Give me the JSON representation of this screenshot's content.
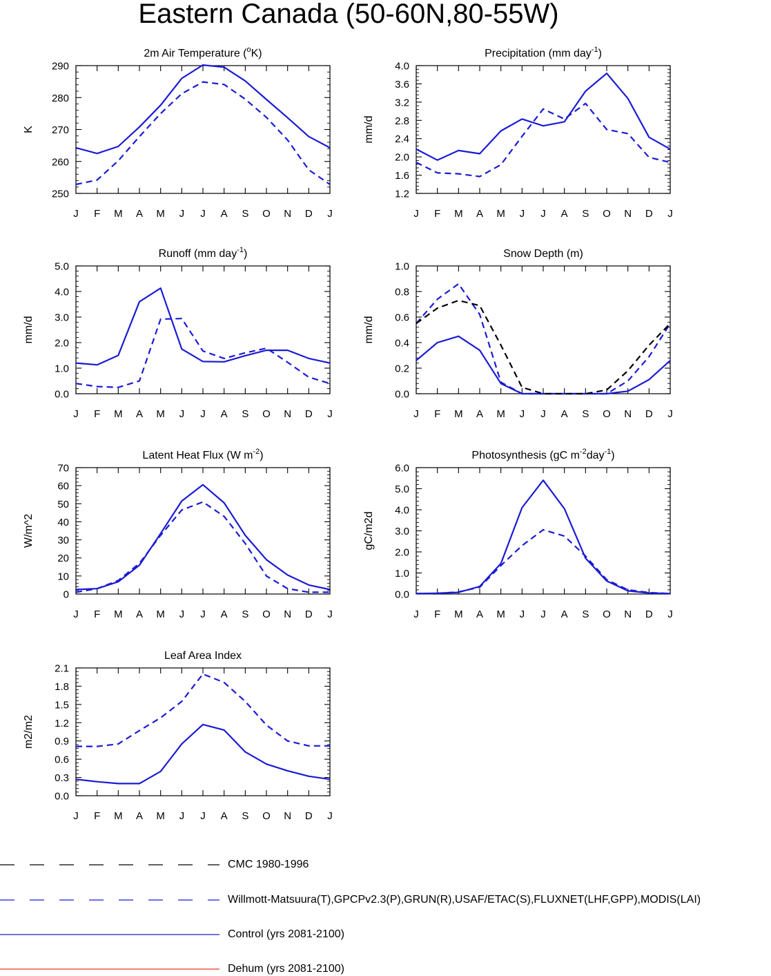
{
  "page": {
    "title": "Eastern Canada (50-60N,80-55W)"
  },
  "colors": {
    "model": "#1a1ad4",
    "obs": "#1a1ad4",
    "cmc": "#000000",
    "dehum": "#e03a1f",
    "axis": "#000000"
  },
  "legend": [
    {
      "label": "CMC 1980-1996",
      "style": "dashed",
      "color": "#000000"
    },
    {
      "label": "Willmott-Matsuura(T),GPCPv2.3(P),GRUN(R),USAF/ETAC(S),FLUXNET(LHF,GPP),MODIS(LAI)",
      "style": "dashed",
      "color": "#1a1ad4"
    },
    {
      "label": "Control (yrs 2081-2100)",
      "style": "solid",
      "color": "#1a1ad4"
    },
    {
      "label": "Dehum (yrs 2081-2100)",
      "style": "solid",
      "color": "#e03a1f"
    }
  ],
  "chart_data": [
    {
      "type": "line",
      "title": "2m Air Temperature (oK)",
      "title_parts": [
        "2m Air Temperature (",
        "o",
        "K)"
      ],
      "ylabel": "K",
      "categories": [
        "J",
        "F",
        "M",
        "A",
        "M",
        "J",
        "J",
        "A",
        "S",
        "O",
        "N",
        "D",
        "J"
      ],
      "ylim": [
        250,
        290
      ],
      "yticks": [
        "250",
        "260",
        "270",
        "280",
        "290"
      ],
      "series": [
        {
          "name": "Control (yrs 2081-2100)",
          "style": "solid",
          "values": [
            264.3,
            262.5,
            264.7,
            270.8,
            277.6,
            286.0,
            290.2,
            289.5,
            285.2,
            279.4,
            273.7,
            267.8,
            264.3
          ]
        },
        {
          "name": "Willmott-Matsuura(T)",
          "style": "dashed",
          "values": [
            252.8,
            254.2,
            260.2,
            267.8,
            275.0,
            281.2,
            284.9,
            284.1,
            279.5,
            273.8,
            266.7,
            257.4,
            252.8
          ]
        }
      ]
    },
    {
      "type": "line",
      "title": "Precipitation (mm day-1)",
      "title_parts": [
        "Precipitation (mm day",
        "-1",
        ")"
      ],
      "ylabel": "mm/d",
      "categories": [
        "J",
        "F",
        "M",
        "A",
        "M",
        "J",
        "J",
        "A",
        "S",
        "O",
        "N",
        "D",
        "J"
      ],
      "ylim": [
        1.2,
        4.0
      ],
      "yticks": [
        "1.2",
        "1.6",
        "2.0",
        "2.4",
        "2.8",
        "3.2",
        "3.6",
        "4.0"
      ],
      "series": [
        {
          "name": "Control (yrs 2081-2100)",
          "style": "solid",
          "values": [
            2.17,
            1.93,
            2.14,
            2.07,
            2.57,
            2.83,
            2.68,
            2.77,
            3.44,
            3.83,
            3.28,
            2.43,
            2.17
          ]
        },
        {
          "name": "GPCPv2.3(P)",
          "style": "dashed",
          "values": [
            1.88,
            1.65,
            1.63,
            1.57,
            1.83,
            2.45,
            3.05,
            2.83,
            3.17,
            2.6,
            2.51,
            1.99,
            1.88
          ]
        }
      ]
    },
    {
      "type": "line",
      "title": "Runoff (mm day-1)",
      "title_parts": [
        "Runoff (mm day",
        "-1",
        ")"
      ],
      "ylabel": "mm/d",
      "categories": [
        "J",
        "F",
        "M",
        "A",
        "M",
        "J",
        "J",
        "A",
        "S",
        "O",
        "N",
        "D",
        "J"
      ],
      "ylim": [
        0,
        5.0
      ],
      "yticks": [
        "0.0",
        "1.0",
        "2.0",
        "3.0",
        "4.0",
        "5.0"
      ],
      "series": [
        {
          "name": "Control (yrs 2081-2100)",
          "style": "solid",
          "values": [
            1.2,
            1.13,
            1.5,
            3.6,
            4.13,
            1.75,
            1.26,
            1.25,
            1.49,
            1.7,
            1.7,
            1.38,
            1.2
          ]
        },
        {
          "name": "GRUN(R)",
          "style": "dashed",
          "values": [
            0.4,
            0.28,
            0.25,
            0.5,
            2.92,
            2.94,
            1.67,
            1.38,
            1.6,
            1.78,
            1.23,
            0.65,
            0.4
          ]
        }
      ]
    },
    {
      "type": "line",
      "title": "Snow Depth (m)",
      "title_parts": [
        "Snow Depth (m)",
        "",
        ""
      ],
      "ylabel": "mm/d",
      "categories": [
        "J",
        "F",
        "M",
        "A",
        "M",
        "J",
        "J",
        "A",
        "S",
        "O",
        "N",
        "D",
        "J"
      ],
      "ylim": [
        0,
        1.0
      ],
      "yticks": [
        "0.0",
        "0.2",
        "0.4",
        "0.6",
        "0.8",
        "1.0"
      ],
      "series": [
        {
          "name": "Control (yrs 2081-2100)",
          "style": "solid",
          "values": [
            0.26,
            0.4,
            0.45,
            0.34,
            0.08,
            0.0,
            0.0,
            0.0,
            0.0,
            0.0,
            0.02,
            0.11,
            0.26
          ]
        },
        {
          "name": "USAF/ETAC(S)",
          "style": "dashed",
          "values": [
            0.55,
            0.74,
            0.86,
            0.62,
            0.09,
            0.0,
            0.0,
            0.0,
            0.0,
            0.0,
            0.1,
            0.29,
            0.55
          ]
        },
        {
          "name": "CMC 1980-1996",
          "style": "dashed-black",
          "values": [
            0.55,
            0.67,
            0.73,
            0.69,
            0.38,
            0.05,
            0.0,
            0.0,
            0.0,
            0.03,
            0.18,
            0.38,
            0.55
          ]
        }
      ]
    },
    {
      "type": "line",
      "title": "Latent Heat Flux (W m-2)",
      "title_parts": [
        "Latent Heat Flux (W m",
        "-2",
        ")"
      ],
      "ylabel": "W/m^2",
      "categories": [
        "J",
        "F",
        "M",
        "A",
        "M",
        "J",
        "J",
        "A",
        "S",
        "O",
        "N",
        "D",
        "J"
      ],
      "ylim": [
        0,
        70
      ],
      "yticks": [
        "0",
        "10",
        "20",
        "30",
        "40",
        "50",
        "60",
        "70"
      ],
      "series": [
        {
          "name": "Control (yrs 2081-2100)",
          "style": "solid",
          "values": [
            2.5,
            3.0,
            6.8,
            16.0,
            33.5,
            51.5,
            60.5,
            50.5,
            32.5,
            19.0,
            10.5,
            5.0,
            2.5
          ]
        },
        {
          "name": "FLUXNET(LHF)",
          "style": "dashed",
          "values": [
            1.0,
            3.0,
            7.5,
            17.0,
            32.5,
            46.5,
            51.0,
            43.0,
            28.0,
            10.0,
            3.0,
            1.0,
            1.0
          ]
        }
      ]
    },
    {
      "type": "line",
      "title": "Photosynthesis (gC m-2day-1)",
      "title_parts": [
        "Photosynthesis (gC m",
        "-2",
        "day",
        "-1",
        ")"
      ],
      "ylabel": "gC/m2d",
      "categories": [
        "J",
        "F",
        "M",
        "A",
        "M",
        "J",
        "J",
        "A",
        "S",
        "O",
        "N",
        "D",
        "J"
      ],
      "ylim": [
        0,
        6.0
      ],
      "yticks": [
        "0.0",
        "1.0",
        "2.0",
        "3.0",
        "4.0",
        "5.0",
        "6.0"
      ],
      "series": [
        {
          "name": "Control (yrs 2081-2100)",
          "style": "solid",
          "values": [
            0.02,
            0.04,
            0.08,
            0.36,
            1.45,
            4.1,
            5.4,
            4.05,
            1.7,
            0.62,
            0.15,
            0.05,
            0.02
          ]
        },
        {
          "name": "FLUXNET(GPP)",
          "style": "dashed",
          "values": [
            0.02,
            0.03,
            0.1,
            0.32,
            1.35,
            2.3,
            3.05,
            2.75,
            1.8,
            0.68,
            0.2,
            0.07,
            0.02
          ]
        }
      ]
    },
    {
      "type": "line",
      "title": "Leaf Area Index",
      "title_parts": [
        "Leaf Area Index",
        "",
        ""
      ],
      "ylabel": "m2/m2",
      "categories": [
        "J",
        "F",
        "M",
        "A",
        "M",
        "J",
        "J",
        "A",
        "S",
        "O",
        "N",
        "D",
        "J"
      ],
      "ylim": [
        0,
        2.1
      ],
      "yticks": [
        "0.0",
        "0.3",
        "0.6",
        "0.9",
        "1.2",
        "1.5",
        "1.8",
        "2.1"
      ],
      "series": [
        {
          "name": "Control (yrs 2081-2100)",
          "style": "solid",
          "values": [
            0.27,
            0.23,
            0.2,
            0.2,
            0.4,
            0.85,
            1.17,
            1.08,
            0.72,
            0.52,
            0.41,
            0.32,
            0.27
          ]
        },
        {
          "name": "MODIS(LAI)",
          "style": "dashed",
          "values": [
            0.81,
            0.81,
            0.85,
            1.07,
            1.28,
            1.55,
            2.0,
            1.86,
            1.55,
            1.16,
            0.9,
            0.82,
            0.82
          ]
        }
      ]
    }
  ]
}
